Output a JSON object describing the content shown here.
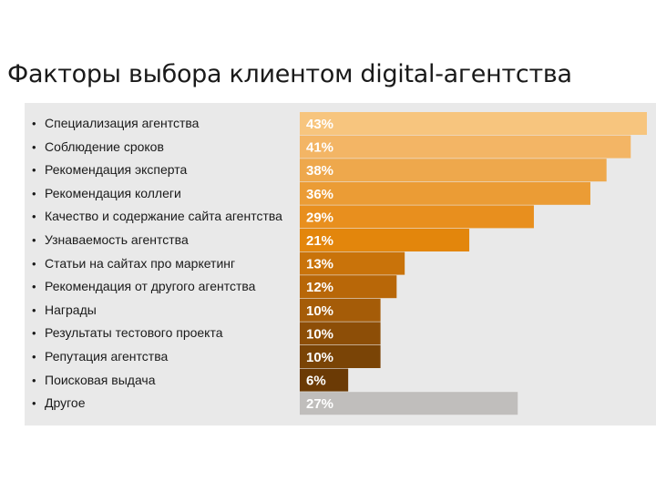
{
  "title": "Факторы выбора клиентом digital-агентства",
  "chart_data": {
    "type": "bar",
    "orientation": "horizontal",
    "categories": [
      "Специализация агентства",
      "Соблюдение сроков",
      "Рекомендация эксперта",
      "Рекомендация коллеги",
      "Качество и содержание сайта агентства",
      "Узнаваемость агентства",
      "Статьи на сайтах про маркетинг",
      "Рекомендация от другого агентства",
      "Награды",
      "Результаты тестового проекта",
      "Репутация агентства",
      "Поисковая выдача",
      "Другое"
    ],
    "values": [
      43,
      41,
      38,
      36,
      29,
      21,
      13,
      12,
      10,
      10,
      10,
      6,
      27
    ],
    "value_labels": [
      "43%",
      "41%",
      "38%",
      "36%",
      "29%",
      "21%",
      "13%",
      "12%",
      "10%",
      "10%",
      "10%",
      "6%",
      "27%"
    ],
    "colors": [
      "#f7c57e",
      "#f3b565",
      "#eea84c",
      "#eb9c35",
      "#e88f1e",
      "#e3860c",
      "#c9730a",
      "#b86708",
      "#a55c08",
      "#8d4e07",
      "#7a4406",
      "#6b3a05",
      "#c0bebc"
    ],
    "xlim": [
      0,
      43
    ],
    "bullet": "•"
  }
}
